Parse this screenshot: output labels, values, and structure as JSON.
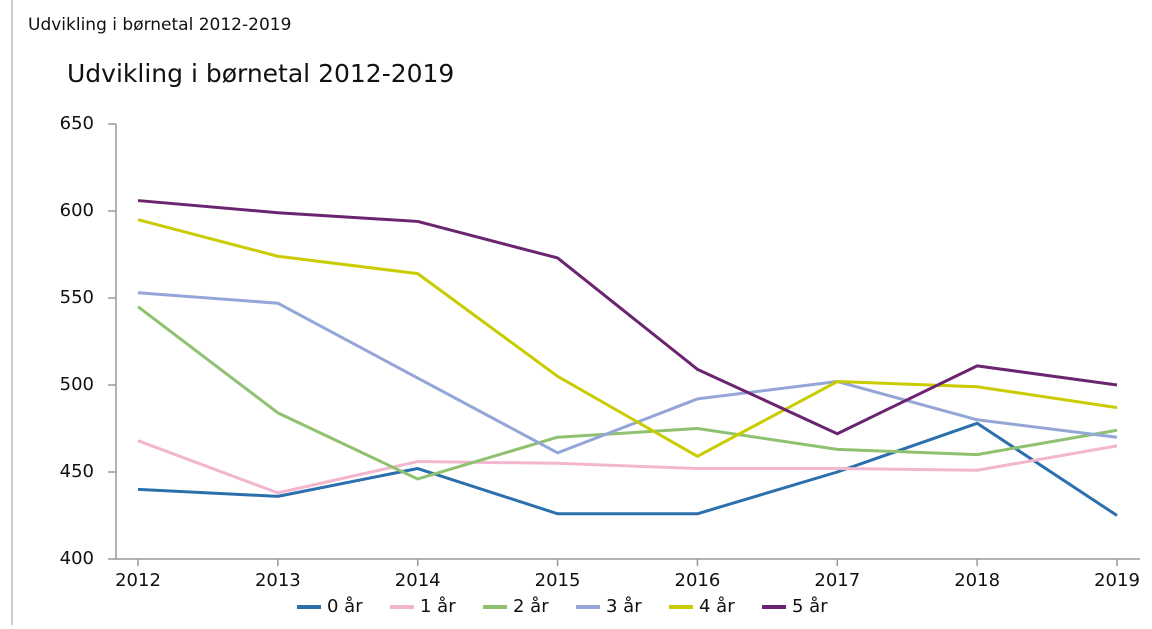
{
  "header": {
    "title": "Udvikling i børnetal 2012-2019"
  },
  "chart_data": {
    "type": "line",
    "title": "Udvikling i børnetal 2012-2019",
    "categories": [
      "2012",
      "2013",
      "2014",
      "2015",
      "2016",
      "2017",
      "2018",
      "2019"
    ],
    "series": [
      {
        "name": "0 år",
        "color": "#2b6fad",
        "values": [
          440,
          436,
          452,
          426,
          426,
          450,
          478,
          425
        ]
      },
      {
        "name": "1 år",
        "color": "#f3b6cf",
        "values": [
          468,
          438,
          456,
          455,
          452,
          452,
          451,
          465
        ]
      },
      {
        "name": "2 år",
        "color": "#8fc270",
        "values": [
          545,
          484,
          446,
          470,
          475,
          463,
          460,
          474
        ]
      },
      {
        "name": "3 år",
        "color": "#94a6d7",
        "values": [
          553,
          547,
          504,
          461,
          492,
          502,
          480,
          470
        ]
      },
      {
        "name": "4 år",
        "color": "#c9cc00",
        "values": [
          595,
          574,
          564,
          505,
          459,
          502,
          499,
          487
        ]
      },
      {
        "name": "5 år",
        "color": "#6b2470",
        "values": [
          606,
          599,
          594,
          573,
          509,
          472,
          511,
          500
        ]
      }
    ],
    "ylim": [
      400,
      650
    ],
    "yticks": [
      400,
      450,
      500,
      550,
      600,
      650
    ],
    "grid": false,
    "legend": "bottom"
  }
}
